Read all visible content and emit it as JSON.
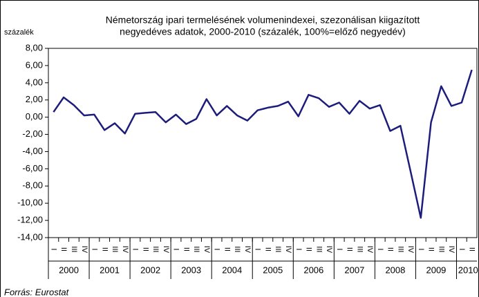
{
  "chart_data": {
    "type": "line",
    "title": [
      "Németország ipari termelésének volumenindexei, szezonálisan kiigazított",
      "negyedéves adatok, 2000-2010 (százalék, 100%=előző negyedév)"
    ],
    "y_label": "százalék",
    "source": "Forrás: Eurostat",
    "categories": [
      "I",
      "II",
      "III",
      "IV",
      "I",
      "II",
      "III",
      "IV",
      "I",
      "II",
      "III",
      "IV",
      "I",
      "II",
      "III",
      "IV",
      "I",
      "II",
      "III",
      "IV",
      "I",
      "II",
      "III",
      "IV",
      "I",
      "II",
      "III",
      "IV",
      "I",
      "II",
      "III",
      "IV",
      "I",
      "II",
      "III",
      "IV",
      "I",
      "II",
      "III",
      "IV",
      "I",
      "II"
    ],
    "years": [
      "2000",
      "2001",
      "2002",
      "2003",
      "2004",
      "2005",
      "2006",
      "2007",
      "2008",
      "2009",
      "2010"
    ],
    "series": [
      {
        "name": "volumenindex",
        "color": "#1c1c7a",
        "values": [
          0.6,
          2.3,
          1.4,
          0.2,
          0.3,
          -1.5,
          -0.7,
          -1.9,
          0.4,
          0.5,
          0.6,
          -0.6,
          0.3,
          -0.8,
          -0.2,
          2.1,
          0.2,
          1.3,
          0.2,
          -0.4,
          0.8,
          1.1,
          1.3,
          1.8,
          0.1,
          2.6,
          2.2,
          1.2,
          1.7,
          0.4,
          1.9,
          1.0,
          1.4,
          -1.6,
          -1.0,
          -6.3,
          -11.7,
          -0.6,
          3.6,
          1.3,
          1.7,
          5.5
        ]
      }
    ],
    "ylim": [
      -14,
      8
    ],
    "yticks": [
      {
        "value": -14,
        "label": "-14,00"
      },
      {
        "value": -12,
        "label": "-12,00"
      },
      {
        "value": -10,
        "label": "-10,00"
      },
      {
        "value": -8,
        "label": "-8,00"
      },
      {
        "value": -6,
        "label": "-6,00"
      },
      {
        "value": -4,
        "label": "-4,00"
      },
      {
        "value": -2,
        "label": "-2,00"
      },
      {
        "value": 0,
        "label": "0,00"
      },
      {
        "value": 2,
        "label": "2,00"
      },
      {
        "value": 4,
        "label": "4,00"
      },
      {
        "value": 6,
        "label": "6,00"
      },
      {
        "value": 8,
        "label": "8,00"
      }
    ],
    "grid": false
  }
}
